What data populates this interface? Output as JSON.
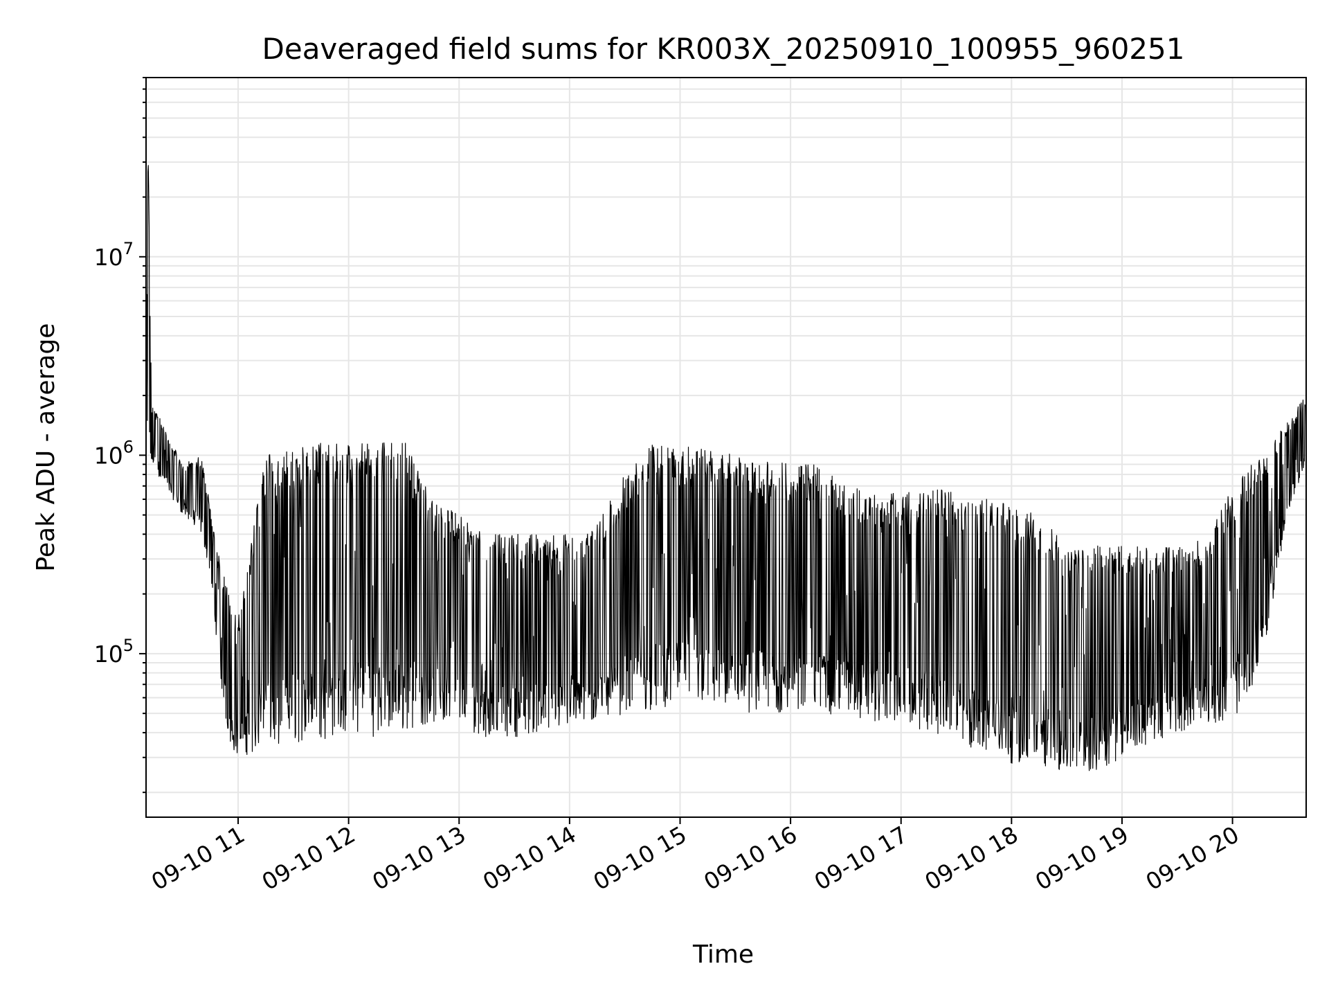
{
  "chart_data": {
    "type": "line",
    "title": "Deaveraged field sums for KR003X_20250910_100955_960251",
    "xlabel": "Time",
    "ylabel": "Peak ADU - average",
    "yscale": "log",
    "grid": true,
    "legend": "none",
    "colors": {
      "line": "#000000",
      "grid": "#e6e6e6",
      "axes": "#000000"
    },
    "xlim": [
      "2025-09-10 10:10",
      "2025-09-10 20:40"
    ],
    "ylim": [
      15000,
      80000000
    ],
    "x_ticks": [
      "09-10 11",
      "09-10 12",
      "09-10 13",
      "09-10 14",
      "09-10 15",
      "09-10 16",
      "09-10 17",
      "09-10 18",
      "09-10 19",
      "09-10 20"
    ],
    "y_ticks": [
      {
        "value": 100000,
        "base": "10",
        "exp": "5"
      },
      {
        "value": 1000000,
        "base": "10",
        "exp": "6"
      },
      {
        "value": 10000000,
        "base": "10",
        "exp": "7"
      }
    ],
    "series": [
      {
        "values_note": "",
        "x": [
          "2025-09-10 10:10",
          "2025-09-10 10:11",
          "2025-09-10 10:13",
          "2025-09-10 10:20",
          "2025-09-10 10:30",
          "2025-09-10 10:40",
          "2025-09-10 10:45",
          "2025-09-10 10:50",
          "2025-09-10 10:55",
          "2025-09-10 11:00",
          "2025-09-10 11:15",
          "2025-09-10 11:30",
          "2025-09-10 11:45",
          "2025-09-10 12:00",
          "2025-09-10 12:15",
          "2025-09-10 12:30",
          "2025-09-10 12:45",
          "2025-09-10 13:00",
          "2025-09-10 13:15",
          "2025-09-10 13:30",
          "2025-09-10 13:45",
          "2025-09-10 14:00",
          "2025-09-10 14:15",
          "2025-09-10 14:30",
          "2025-09-10 14:45",
          "2025-09-10 15:00",
          "2025-09-10 15:15",
          "2025-09-10 15:30",
          "2025-09-10 15:45",
          "2025-09-10 16:00",
          "2025-09-10 16:15",
          "2025-09-10 16:30",
          "2025-09-10 16:45",
          "2025-09-10 17:00",
          "2025-09-10 17:15",
          "2025-09-10 17:30",
          "2025-09-10 17:45",
          "2025-09-10 18:00",
          "2025-09-10 18:15",
          "2025-09-10 18:30",
          "2025-09-10 18:45",
          "2025-09-10 19:00",
          "2025-09-10 19:15",
          "2025-09-10 19:30",
          "2025-09-10 19:45",
          "2025-09-10 20:00",
          "2025-09-10 20:15",
          "2025-09-10 20:30",
          "2025-09-10 20:40"
        ],
        "high": [
          1500000,
          50000000,
          1800000,
          1400000,
          900000,
          1000000,
          550000,
          300000,
          200000,
          150000,
          1000000,
          1100000,
          1150000,
          1150000,
          1200000,
          1200000,
          600000,
          500000,
          400000,
          400000,
          400000,
          400000,
          450000,
          800000,
          1150000,
          1100000,
          1100000,
          1000000,
          950000,
          900000,
          900000,
          700000,
          650000,
          650000,
          700000,
          650000,
          600000,
          600000,
          500000,
          350000,
          350000,
          350000,
          350000,
          350000,
          380000,
          700000,
          1000000,
          1500000,
          2000000
        ],
        "low": [
          800000,
          700000,
          900000,
          700000,
          500000,
          400000,
          250000,
          80000,
          35000,
          30000,
          33000,
          35000,
          36000,
          40000,
          38000,
          40000,
          45000,
          42000,
          38000,
          38000,
          40000,
          42000,
          45000,
          50000,
          52000,
          55000,
          55000,
          50000,
          50000,
          50000,
          50000,
          48000,
          45000,
          45000,
          40000,
          35000,
          30000,
          28000,
          27000,
          25000,
          25000,
          30000,
          35000,
          40000,
          45000,
          45000,
          80000,
          500000,
          900000
        ]
      }
    ]
  }
}
